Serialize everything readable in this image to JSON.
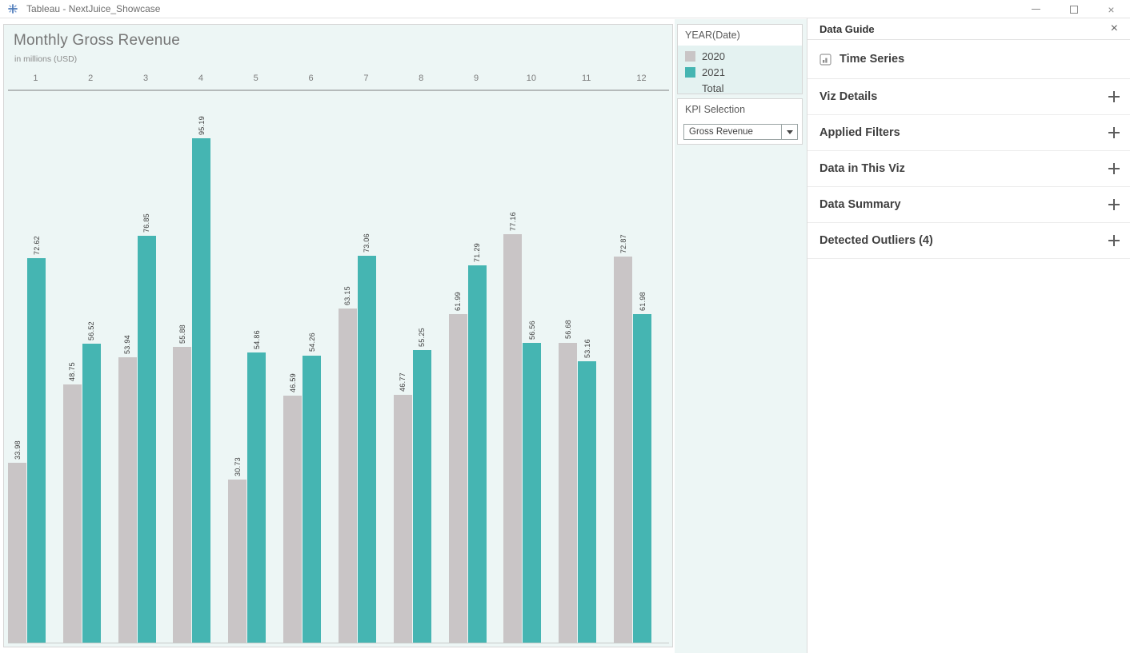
{
  "window": {
    "title": "Tableau - NextJuice_Showcase"
  },
  "chart": {
    "title": "Monthly Gross Revenue",
    "subtitle": "in millions (USD)"
  },
  "chart_data": {
    "type": "bar",
    "title": "Monthly Gross Revenue",
    "subtitle": "in millions (USD)",
    "xlabel": "",
    "ylabel": "",
    "categories": [
      "1",
      "2",
      "3",
      "4",
      "5",
      "6",
      "7",
      "8",
      "9",
      "10",
      "11",
      "12"
    ],
    "series": [
      {
        "name": "2020",
        "color": "#c9c5c6",
        "values": [
          33.98,
          48.75,
          53.94,
          55.88,
          30.73,
          46.59,
          63.15,
          46.77,
          61.99,
          77.16,
          56.68,
          72.87
        ]
      },
      {
        "name": "2021",
        "color": "#45b5b2",
        "values": [
          72.62,
          56.52,
          76.85,
          95.19,
          54.86,
          54.26,
          73.06,
          55.25,
          71.29,
          56.56,
          53.16,
          61.98
        ]
      }
    ],
    "ylim": [
      0,
      104
    ],
    "value_labels": true,
    "axis_position": "top",
    "grid": false,
    "legend_position": "right"
  },
  "legend": {
    "title": "YEAR(Date)",
    "items": [
      {
        "label": "2020",
        "color": "#c9c5c6"
      },
      {
        "label": "2021",
        "color": "#45b5b2"
      },
      {
        "label": "Total",
        "color": ""
      }
    ]
  },
  "kpi": {
    "title": "KPI Selection",
    "selected": "Gross Revenue"
  },
  "data_guide": {
    "title": "Data Guide",
    "close_icon": "×",
    "sheet_label": "Time Series",
    "sections": [
      {
        "label": "Viz Details"
      },
      {
        "label": "Applied Filters"
      },
      {
        "label": "Data in This Viz"
      },
      {
        "label": "Data Summary"
      },
      {
        "label": "Detected Outliers (4)"
      }
    ]
  },
  "colors": {
    "canvas_mint": "#edf6f5",
    "bar_gray": "#c9c5c6",
    "bar_teal": "#45b5b2",
    "logo_blue": "#4a79b8"
  }
}
